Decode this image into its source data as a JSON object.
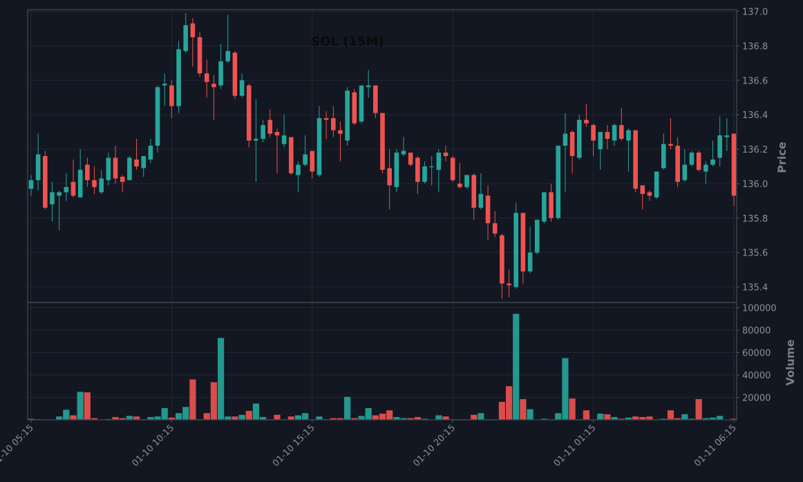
{
  "chart_data": {
    "type": "candlestick",
    "title": "SOL (15M)",
    "categories": [
      "01-10 05:15",
      null,
      null,
      null,
      null,
      null,
      null,
      null,
      null,
      null,
      null,
      null,
      null,
      null,
      null,
      null,
      null,
      null,
      null,
      null,
      "01-10 10:15",
      null,
      null,
      null,
      null,
      null,
      null,
      null,
      null,
      null,
      null,
      null,
      null,
      null,
      null,
      null,
      null,
      null,
      null,
      null,
      "01-10 15:15",
      null,
      null,
      null,
      null,
      null,
      null,
      null,
      null,
      null,
      null,
      null,
      null,
      null,
      null,
      null,
      null,
      null,
      null,
      null,
      "01-10 20:15",
      null,
      null,
      null,
      null,
      null,
      null,
      null,
      null,
      null,
      null,
      null,
      null,
      null,
      null,
      null,
      null,
      null,
      null,
      null,
      "01-11 01:15",
      null,
      null,
      null,
      null,
      null,
      null,
      null,
      null,
      null,
      null,
      null,
      null,
      null,
      null,
      null,
      null,
      null,
      null,
      null,
      "01-11 06:15"
    ],
    "open": [
      135.97,
      136.02,
      136.16,
      135.88,
      135.93,
      135.95,
      136.01,
      135.92,
      136.11,
      136.02,
      135.95,
      136.02,
      136.15,
      136.04,
      136.02,
      136.14,
      136.09,
      136.14,
      136.22,
      136.57,
      136.57,
      136.45,
      136.77,
      136.93,
      136.85,
      136.64,
      136.58,
      136.57,
      136.71,
      136.76,
      136.51,
      136.57,
      136.25,
      136.26,
      136.37,
      136.3,
      136.23,
      136.27,
      136.05,
      136.11,
      136.19,
      136.05,
      136.38,
      136.38,
      136.31,
      136.25,
      136.53,
      136.36,
      136.56,
      136.57,
      136.41,
      136.09,
      135.98,
      136.17,
      136.18,
      136.15,
      136.01,
      136.1,
      136.08,
      136.18,
      136.15,
      136.0,
      135.98,
      136.05,
      135.86,
      135.93,
      135.77,
      135.7,
      135.42,
      135.4,
      135.83,
      135.49,
      135.6,
      135.78,
      135.95,
      135.8,
      136.22,
      136.3,
      136.15,
      136.37,
      136.34,
      136.2,
      136.3,
      136.25,
      136.34,
      136.25,
      136.31,
      135.99,
      135.95,
      135.92,
      136.09,
      136.23,
      136.22,
      136.02,
      136.11,
      136.18,
      136.07,
      136.11,
      136.15,
      136.27,
      136.29
    ],
    "high": [
      136.05,
      136.29,
      136.19,
      136.01,
      135.96,
      136.06,
      136.14,
      136.2,
      136.15,
      136.1,
      136.08,
      136.18,
      136.22,
      136.05,
      136.16,
      136.26,
      136.16,
      136.26,
      136.57,
      136.64,
      136.6,
      136.83,
      136.99,
      136.96,
      136.88,
      136.72,
      136.63,
      136.81,
      136.98,
      136.77,
      136.64,
      136.58,
      136.49,
      136.37,
      136.43,
      136.32,
      136.4,
      136.27,
      136.13,
      136.28,
      136.19,
      136.45,
      136.42,
      136.45,
      136.36,
      136.56,
      136.55,
      136.57,
      136.66,
      136.57,
      136.41,
      136.2,
      136.2,
      136.27,
      136.18,
      136.16,
      136.13,
      136.16,
      136.2,
      136.22,
      136.16,
      136.12,
      136.05,
      136.06,
      136.06,
      135.99,
      135.84,
      135.71,
      135.5,
      135.89,
      135.83,
      135.75,
      135.79,
      135.95,
      136.0,
      136.22,
      136.41,
      136.31,
      136.4,
      136.46,
      136.35,
      136.3,
      136.34,
      136.35,
      136.44,
      136.32,
      136.31,
      135.99,
      135.96,
      136.07,
      136.29,
      136.38,
      136.27,
      136.2,
      136.19,
      136.19,
      136.13,
      136.25,
      136.39,
      136.38,
      136.29
    ],
    "low": [
      135.93,
      135.96,
      135.85,
      135.78,
      135.73,
      135.9,
      135.92,
      135.92,
      135.98,
      135.94,
      135.94,
      135.99,
      136.0,
      135.95,
      136.02,
      136.08,
      136.04,
      136.12,
      136.18,
      136.45,
      136.38,
      136.41,
      136.76,
      136.68,
      136.62,
      136.5,
      136.37,
      136.55,
      136.7,
      136.49,
      136.5,
      136.21,
      136.01,
      136.24,
      136.27,
      136.06,
      136.21,
      136.05,
      135.95,
      136.1,
      136.03,
      136.04,
      136.26,
      136.27,
      136.13,
      136.22,
      136.34,
      136.35,
      136.5,
      136.38,
      136.06,
      135.85,
      135.95,
      136.16,
      136.1,
      135.94,
      136.0,
      135.99,
      135.95,
      136.13,
      136.01,
      135.97,
      135.97,
      135.79,
      135.85,
      135.67,
      135.69,
      135.33,
      135.34,
      135.39,
      135.42,
      135.48,
      135.59,
      135.77,
      135.78,
      135.79,
      135.95,
      136.06,
      136.14,
      136.33,
      136.16,
      136.08,
      136.2,
      136.22,
      136.25,
      136.07,
      135.95,
      135.85,
      135.9,
      135.91,
      136.08,
      136.2,
      135.98,
      136.01,
      136.1,
      136.07,
      136.0,
      136.1,
      136.1,
      136.19,
      135.87
    ],
    "close": [
      136.02,
      136.17,
      135.86,
      135.95,
      135.95,
      135.98,
      135.93,
      136.08,
      136.02,
      135.98,
      136.03,
      136.15,
      136.03,
      136.01,
      136.15,
      136.1,
      136.16,
      136.22,
      136.56,
      136.58,
      136.45,
      136.78,
      136.92,
      136.85,
      136.64,
      136.59,
      136.56,
      136.71,
      136.77,
      136.51,
      136.6,
      136.25,
      136.26,
      136.34,
      136.29,
      136.28,
      136.28,
      136.06,
      136.11,
      136.17,
      136.07,
      136.38,
      136.37,
      136.31,
      136.29,
      136.54,
      136.35,
      136.57,
      136.57,
      136.41,
      136.08,
      135.99,
      136.18,
      136.19,
      136.11,
      136.01,
      136.1,
      136.1,
      136.18,
      136.16,
      136.02,
      135.98,
      136.05,
      135.86,
      135.94,
      135.77,
      135.71,
      135.42,
      135.41,
      135.83,
      135.49,
      135.6,
      135.79,
      135.95,
      135.8,
      136.22,
      136.29,
      136.16,
      136.37,
      136.35,
      136.25,
      136.3,
      136.26,
      136.34,
      136.26,
      136.31,
      135.97,
      135.94,
      135.93,
      136.07,
      136.23,
      136.22,
      136.01,
      136.11,
      136.18,
      136.08,
      136.11,
      136.14,
      136.28,
      136.28,
      135.93
    ],
    "volume": [
      1000,
      500,
      300,
      200,
      3000,
      9000,
      4000,
      25000,
      24500,
      1500,
      200,
      700,
      2500,
      1500,
      3500,
      3000,
      500,
      2500,
      3000,
      10500,
      2000,
      6000,
      11500,
      36000,
      500,
      6000,
      33500,
      73000,
      3000,
      3000,
      4500,
      8000,
      14500,
      2500,
      500,
      4500,
      500,
      3000,
      4000,
      6000,
      500,
      3000,
      500,
      1500,
      1500,
      20500,
      1500,
      3500,
      10500,
      4000,
      5500,
      8500,
      2500,
      1500,
      1500,
      2500,
      1000,
      300,
      4000,
      3000,
      500,
      500,
      500,
      4500,
      6000,
      500,
      500,
      16000,
      30000,
      94500,
      18500,
      9500,
      200,
      1000,
      500,
      6000,
      55000,
      19000,
      500,
      8500,
      500,
      5500,
      5000,
      2500,
      1000,
      2000,
      3000,
      2500,
      3000,
      500,
      1000,
      8500,
      1500,
      5000,
      1000,
      18500,
      1500,
      2000,
      3500,
      200,
      1000
    ],
    "up_color": "#26a69a",
    "down_color": "#ef5350",
    "ylabel": "Price",
    "ylim": [
      135.31,
      137.01
    ],
    "yticks": [
      135.4,
      135.6,
      135.8,
      {
        "value": 136.0,
        "label": "136.0"
      },
      136.2,
      136.4,
      136.6,
      136.8,
      {
        "value": 137.0,
        "label": "137.0"
      }
    ],
    "volume_ylabel": "Volume",
    "volume_ylim": [
      0,
      104600
    ],
    "volume_yticks": [
      20000,
      40000,
      60000,
      80000,
      100000
    ],
    "grid": true
  }
}
